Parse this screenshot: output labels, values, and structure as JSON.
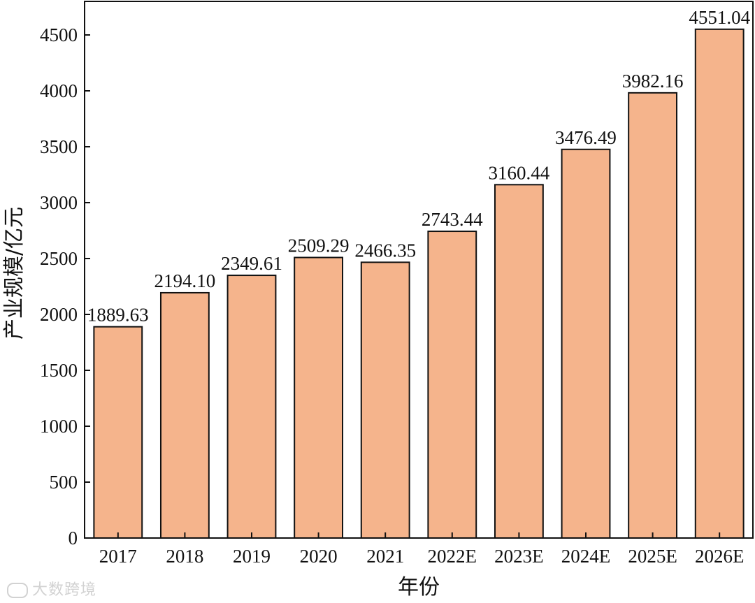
{
  "chart_data": {
    "type": "bar",
    "categories": [
      "2017",
      "2018",
      "2019",
      "2020",
      "2021",
      "2022E",
      "2023E",
      "2024E",
      "2025E",
      "2026E"
    ],
    "values": [
      1889.63,
      2194.1,
      2349.61,
      2509.29,
      2466.35,
      2743.44,
      3160.44,
      3476.49,
      3982.16,
      4551.04
    ],
    "data_labels": [
      "1889.63",
      "2194.10",
      "2349.61",
      "2509.29",
      "2466.35",
      "2743.44",
      "3160.44",
      "3476.49",
      "3982.16",
      "4551.04"
    ],
    "xlabel": "年份",
    "ylabel": "产业规模/亿元",
    "ylim": [
      0,
      4800
    ],
    "yticks": [
      0,
      500,
      1000,
      1500,
      2000,
      2500,
      3000,
      3500,
      4000,
      4500
    ],
    "grid": false,
    "legend": "none",
    "colors": {
      "bar_fill": "#F5B48C",
      "bar_stroke": "#111111"
    }
  },
  "watermark": {
    "text": "大数跨境"
  }
}
